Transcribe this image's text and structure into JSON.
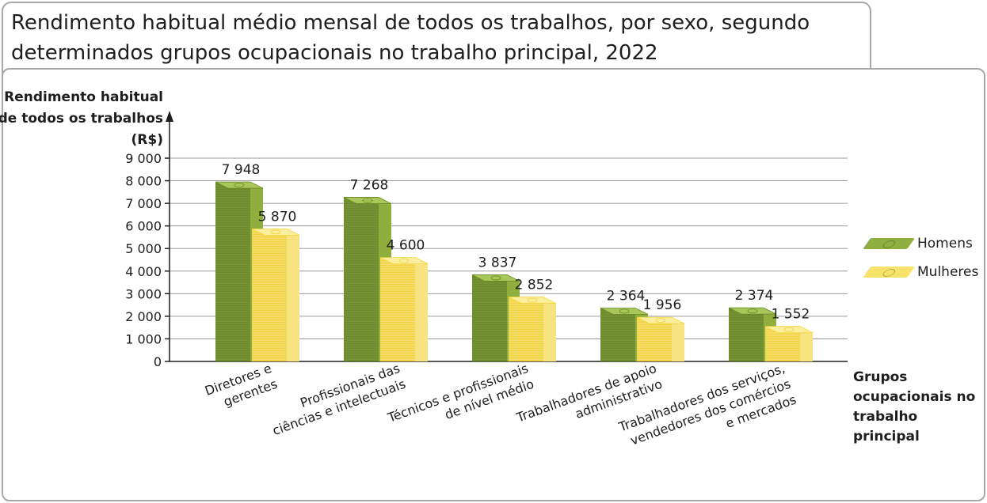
{
  "title": "Rendimento habitual médio mensal de todos os trabalhos, por sexo, segundo determinados grupos ocupacionais no trabalho principal, 2022",
  "chart_data": {
    "type": "bar",
    "title": "Rendimento habitual médio mensal de todos os trabalhos, por sexo, segundo determinados grupos ocupacionais no trabalho principal, 2022",
    "ylabel": "Rendimento habitual de todos os trabalhos (R$)",
    "xlabel": "Grupos ocupacionais no trabalho principal",
    "ylim": [
      0,
      9000
    ],
    "yticks": [
      0,
      1000,
      2000,
      3000,
      4000,
      5000,
      6000,
      7000,
      8000,
      9000
    ],
    "ytick_labels": [
      "0",
      "1 000",
      "2 000",
      "3 000",
      "4 000",
      "5 000",
      "6 000",
      "7 000",
      "8 000",
      "9 000"
    ],
    "grid": true,
    "legend_position": "right",
    "categories": [
      [
        "Diretores e",
        "gerentes"
      ],
      [
        "Profissionais das",
        "ciências e intelectuais"
      ],
      [
        "Técnicos e profissionais",
        "de nível médio"
      ],
      [
        "Trabalhadores de apoio",
        "administrativo"
      ],
      [
        "Trabalhadores dos serviços,",
        "vendedores dos comércios",
        "e mercados"
      ]
    ],
    "series": [
      {
        "name": "Homens",
        "color": "#6b8a2a",
        "values": [
          7948,
          7268,
          3837,
          2364,
          2374
        ],
        "labels": [
          "7 948",
          "7 268",
          "3 837",
          "2 364",
          "2 374"
        ]
      },
      {
        "name": "Mulheres",
        "color": "#f2d443",
        "values": [
          5870,
          4600,
          2852,
          1956,
          1552
        ],
        "labels": [
          "5 870",
          "4 600",
          "2 852",
          "1 956",
          "1 552"
        ]
      }
    ]
  }
}
